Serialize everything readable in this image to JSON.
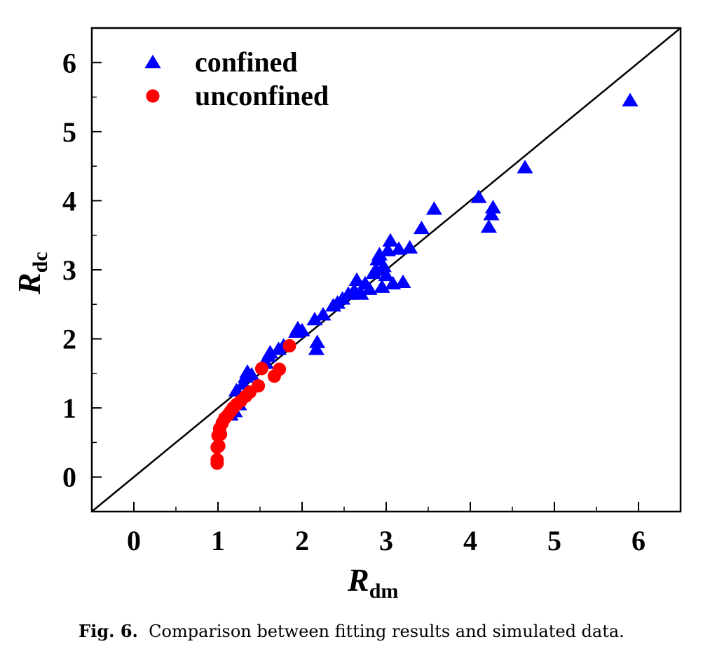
{
  "chart_data": {
    "type": "scatter",
    "xlabel": {
      "main": "R",
      "sub": "dm"
    },
    "ylabel": {
      "main": "R",
      "sub": "dc"
    },
    "xlim": [
      -0.5,
      6.5
    ],
    "ylim": [
      -0.5,
      6.5
    ],
    "xticks": [
      "0",
      "1",
      "2",
      "3",
      "4",
      "5",
      "6"
    ],
    "yticks": [
      "0",
      "1",
      "2",
      "3",
      "4",
      "5",
      "6"
    ],
    "grid": false,
    "legend_position": "top-left",
    "reference_line": "y = x",
    "series": [
      {
        "name": "confined",
        "marker": "triangle",
        "color": "#0000ff",
        "points": [
          [
            1.15,
            0.9
          ],
          [
            1.2,
            0.95
          ],
          [
            1.25,
            1.05
          ],
          [
            1.22,
            1.25
          ],
          [
            1.3,
            1.35
          ],
          [
            1.33,
            1.45
          ],
          [
            1.35,
            1.52
          ],
          [
            1.4,
            1.48
          ],
          [
            1.57,
            1.65
          ],
          [
            1.6,
            1.75
          ],
          [
            1.62,
            1.8
          ],
          [
            1.72,
            1.85
          ],
          [
            1.78,
            1.9
          ],
          [
            1.93,
            2.1
          ],
          [
            1.95,
            2.15
          ],
          [
            2.0,
            2.12
          ],
          [
            2.15,
            2.28
          ],
          [
            2.17,
            1.85
          ],
          [
            2.18,
            1.95
          ],
          [
            2.25,
            2.35
          ],
          [
            2.37,
            2.48
          ],
          [
            2.42,
            2.52
          ],
          [
            2.48,
            2.58
          ],
          [
            2.55,
            2.65
          ],
          [
            2.62,
            2.7
          ],
          [
            2.65,
            2.85
          ],
          [
            2.7,
            2.65
          ],
          [
            2.75,
            2.8
          ],
          [
            2.8,
            2.72
          ],
          [
            2.85,
            2.95
          ],
          [
            2.88,
            3.0
          ],
          [
            2.9,
            3.15
          ],
          [
            2.92,
            3.22
          ],
          [
            2.95,
            2.75
          ],
          [
            2.97,
            3.05
          ],
          [
            3.0,
            2.92
          ],
          [
            3.02,
            3.28
          ],
          [
            3.05,
            3.42
          ],
          [
            3.08,
            2.8
          ],
          [
            3.15,
            3.3
          ],
          [
            3.2,
            2.82
          ],
          [
            3.28,
            3.32
          ],
          [
            3.42,
            3.6
          ],
          [
            3.57,
            3.88
          ],
          [
            4.1,
            4.05
          ],
          [
            4.22,
            3.62
          ],
          [
            4.25,
            3.8
          ],
          [
            4.27,
            3.9
          ],
          [
            4.65,
            4.48
          ],
          [
            5.9,
            5.45
          ]
        ]
      },
      {
        "name": "unconfined",
        "marker": "circle",
        "color": "#ff0000",
        "points": [
          [
            0.99,
            0.2
          ],
          [
            0.99,
            0.25
          ],
          [
            0.99,
            0.43
          ],
          [
            1.01,
            0.45
          ],
          [
            1.0,
            0.6
          ],
          [
            1.03,
            0.62
          ],
          [
            1.02,
            0.7
          ],
          [
            1.05,
            0.78
          ],
          [
            1.08,
            0.85
          ],
          [
            1.12,
            0.9
          ],
          [
            1.15,
            0.95
          ],
          [
            1.18,
            1.0
          ],
          [
            1.22,
            1.05
          ],
          [
            1.27,
            1.1
          ],
          [
            1.33,
            1.17
          ],
          [
            1.38,
            1.23
          ],
          [
            1.48,
            1.32
          ],
          [
            1.52,
            1.57
          ],
          [
            1.67,
            1.46
          ],
          [
            1.73,
            1.56
          ],
          [
            1.85,
            1.9
          ]
        ]
      }
    ]
  },
  "caption": {
    "label": "Fig. 6.",
    "text": "Comparison between fitting results and simulated data."
  }
}
